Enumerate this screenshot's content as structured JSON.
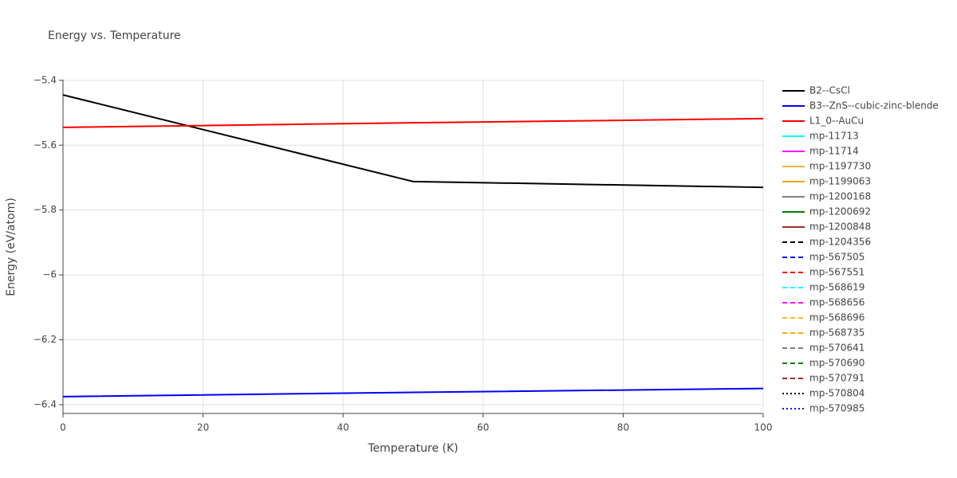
{
  "chart_data": {
    "type": "line",
    "title": "Energy vs. Temperature",
    "x_label": "Temperature (K)",
    "y_label": "Energy (eV/atom)",
    "x": [
      0,
      50,
      100
    ],
    "xlim": [
      0,
      100
    ],
    "xticks": [
      0,
      20,
      40,
      60,
      80,
      100
    ],
    "ylim": [
      -6.427,
      -5.398
    ],
    "yticks": [
      {
        "value": -5.4,
        "label": "−5.4"
      },
      {
        "value": -5.6,
        "label": "−5.6"
      },
      {
        "value": -5.8,
        "label": "−5.8"
      },
      {
        "value": -6,
        "label": "−6"
      },
      {
        "value": -6.2,
        "label": "−6.2"
      },
      {
        "value": -6.4,
        "label": "−6.4"
      }
    ],
    "grid": true,
    "legend": "right",
    "series": [
      {
        "name": "B2--CsCl",
        "color": "#000000",
        "dash": "solid",
        "values": [
          -5.445,
          -5.712,
          -5.73
        ]
      },
      {
        "name": "B3--ZnS--cubic-zinc-blende",
        "color": "#0000ff",
        "dash": "solid",
        "values": [
          -6.375,
          -6.362,
          -6.35
        ]
      },
      {
        "name": "L1_0--AuCu",
        "color": "#ff0000",
        "dash": "solid",
        "values": [
          -5.545,
          -5.531,
          -5.518
        ]
      },
      {
        "name": "mp-11713",
        "color": "#00ffff",
        "dash": "solid",
        "values": [
          null,
          null,
          null
        ]
      },
      {
        "name": "mp-11714",
        "color": "#ff00ff",
        "dash": "solid",
        "values": [
          null,
          null,
          null
        ]
      },
      {
        "name": "mp-1197730",
        "color": "#f5b82e",
        "dash": "solid",
        "values": [
          null,
          null,
          null
        ]
      },
      {
        "name": "mp-1199063",
        "color": "#ffa500",
        "dash": "solid",
        "values": [
          null,
          null,
          null
        ]
      },
      {
        "name": "mp-1200168",
        "color": "#808080",
        "dash": "solid",
        "values": [
          null,
          null,
          null
        ]
      },
      {
        "name": "mp-1200692",
        "color": "#008000",
        "dash": "solid",
        "values": [
          null,
          null,
          null
        ]
      },
      {
        "name": "mp-1200848",
        "color": "#a52a2a",
        "dash": "solid",
        "values": [
          null,
          null,
          null
        ]
      },
      {
        "name": "mp-1204356",
        "color": "#000000",
        "dash": "dash",
        "values": [
          null,
          null,
          null
        ]
      },
      {
        "name": "mp-567505",
        "color": "#0000ff",
        "dash": "dash",
        "values": [
          null,
          null,
          null
        ]
      },
      {
        "name": "mp-567551",
        "color": "#ff0000",
        "dash": "dash",
        "values": [
          null,
          null,
          null
        ]
      },
      {
        "name": "mp-568619",
        "color": "#00ffff",
        "dash": "dash",
        "values": [
          null,
          null,
          null
        ]
      },
      {
        "name": "mp-568656",
        "color": "#ff00ff",
        "dash": "dash",
        "values": [
          null,
          null,
          null
        ]
      },
      {
        "name": "mp-568696",
        "color": "#f5b82e",
        "dash": "dash",
        "values": [
          null,
          null,
          null
        ]
      },
      {
        "name": "mp-568735",
        "color": "#ffa500",
        "dash": "dash",
        "values": [
          null,
          null,
          null
        ]
      },
      {
        "name": "mp-570641",
        "color": "#808080",
        "dash": "dash",
        "values": [
          null,
          null,
          null
        ]
      },
      {
        "name": "mp-570690",
        "color": "#008000",
        "dash": "dash",
        "values": [
          null,
          null,
          null
        ]
      },
      {
        "name": "mp-570791",
        "color": "#a52a2a",
        "dash": "dash",
        "values": [
          null,
          null,
          null
        ]
      },
      {
        "name": "mp-570804",
        "color": "#000000",
        "dash": "dot",
        "values": [
          null,
          null,
          null
        ]
      },
      {
        "name": "mp-570985",
        "color": "#0000ff",
        "dash": "dot",
        "values": [
          null,
          null,
          null
        ]
      }
    ]
  }
}
